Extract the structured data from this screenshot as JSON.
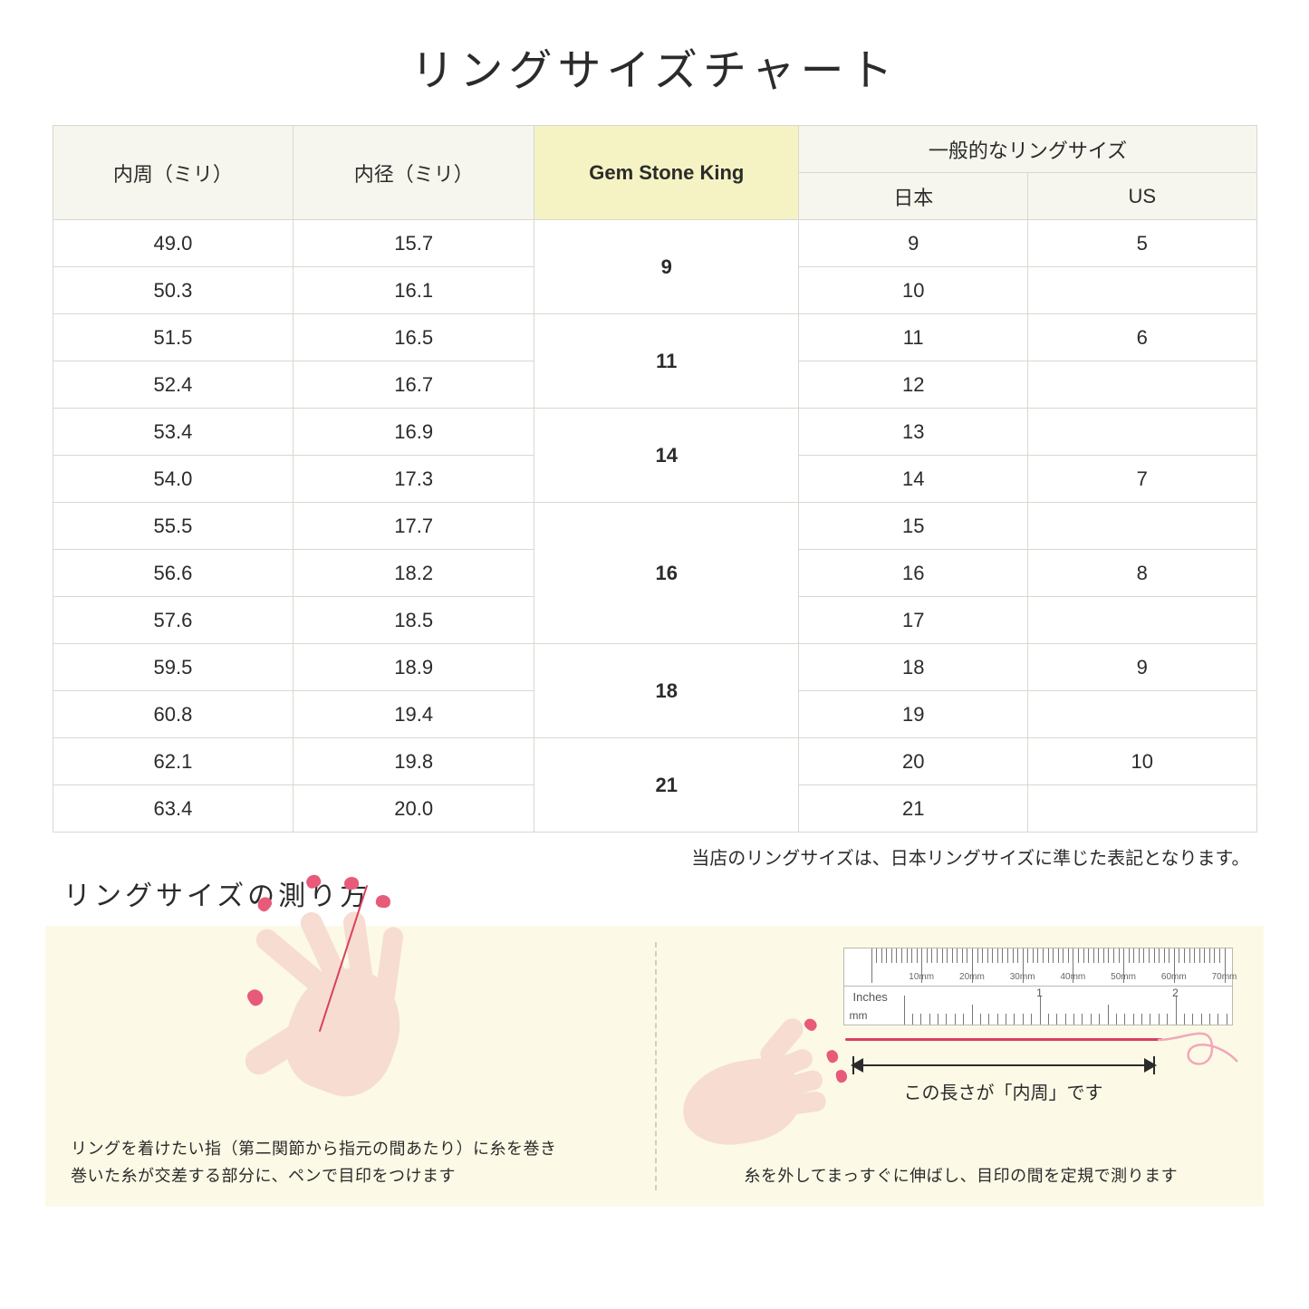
{
  "title": "リングサイズチャート",
  "table": {
    "type": "table",
    "header_bg": "#f6f6ee",
    "highlight_bg": "#f5f3c4",
    "border_color": "#d8d8d0",
    "columns": {
      "circumference": "内周（ミリ）",
      "diameter": "内径（ミリ）",
      "gsk": "Gem Stone King",
      "general_group": "一般的なリングサイズ",
      "jp": "日本",
      "us": "US"
    },
    "groups": [
      {
        "gsk": "9",
        "rows": [
          {
            "c": "49.0",
            "d": "15.7",
            "jp": "9",
            "us": "5"
          },
          {
            "c": "50.3",
            "d": "16.1",
            "jp": "10",
            "us": ""
          }
        ]
      },
      {
        "gsk": "11",
        "rows": [
          {
            "c": "51.5",
            "d": "16.5",
            "jp": "11",
            "us": "6"
          },
          {
            "c": "52.4",
            "d": "16.7",
            "jp": "12",
            "us": ""
          }
        ]
      },
      {
        "gsk": "14",
        "rows": [
          {
            "c": "53.4",
            "d": "16.9",
            "jp": "13",
            "us": ""
          },
          {
            "c": "54.0",
            "d": "17.3",
            "jp": "14",
            "us": "7"
          }
        ]
      },
      {
        "gsk": "16",
        "rows": [
          {
            "c": "55.5",
            "d": "17.7",
            "jp": "15",
            "us": ""
          },
          {
            "c": "56.6",
            "d": "18.2",
            "jp": "16",
            "us": "8"
          },
          {
            "c": "57.6",
            "d": "18.5",
            "jp": "17",
            "us": ""
          }
        ]
      },
      {
        "gsk": "18",
        "rows": [
          {
            "c": "59.5",
            "d": "18.9",
            "jp": "18",
            "us": "9"
          },
          {
            "c": "60.8",
            "d": "19.4",
            "jp": "19",
            "us": ""
          }
        ]
      },
      {
        "gsk": "21",
        "rows": [
          {
            "c": "62.1",
            "d": "19.8",
            "jp": "20",
            "us": "10"
          },
          {
            "c": "63.4",
            "d": "20.0",
            "jp": "21",
            "us": ""
          }
        ]
      }
    ]
  },
  "note": "当店のリングサイズは、日本リングサイズに準じた表記となります。",
  "how": {
    "title": "リングサイズの測り方",
    "left_text_line1": "リングを着けたい指（第二関節から指元の間あたり）に糸を巻き",
    "left_text_line2": "巻いた糸が交差する部分に、ペンで目印をつけます",
    "right_label": "この長さが「内周」です",
    "right_text": "糸を外してまっすぐに伸ばし、目印の間を定規で測ります",
    "ruler_mm": "mm",
    "ruler_in": "Inches",
    "mm_ticks": [
      "10mm",
      "20mm",
      "30mm",
      "40mm",
      "50mm",
      "60mm",
      "70mm"
    ],
    "in_ticks": [
      "1",
      "2"
    ]
  },
  "colors": {
    "skin": "#f7dcd2",
    "nail": "#e85a7a",
    "thread": "#d94060",
    "panel_bg": "#fcfae6"
  }
}
